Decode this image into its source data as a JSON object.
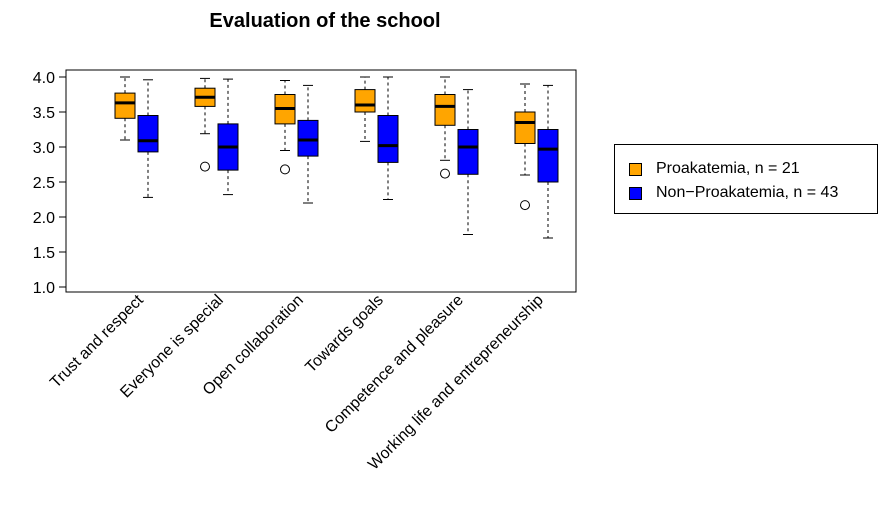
{
  "chart_data": {
    "type": "boxplot",
    "title": "Evaluation of the school",
    "xlabel": "",
    "ylabel": "",
    "ylim": [
      1.0,
      4.0
    ],
    "yticks": [
      "1.0",
      "1.5",
      "2.0",
      "2.5",
      "3.0",
      "3.5",
      "4.0"
    ],
    "categories": [
      "Trust and respect",
      "Everyone is special",
      "Open collaboration",
      "Towards goals",
      "Competence and pleasure",
      "Working life and entrepreneurship"
    ],
    "legend_position": "right",
    "series": [
      {
        "name": "Proakatemia, n = 21",
        "color": "#FFA500",
        "boxes": [
          {
            "min": 3.1,
            "q1": 3.41,
            "median": 3.63,
            "q3": 3.77,
            "max": 4.0,
            "outliers": []
          },
          {
            "min": 3.19,
            "q1": 3.58,
            "median": 3.71,
            "q3": 3.84,
            "max": 3.98,
            "outliers": [
              2.72
            ]
          },
          {
            "min": 2.95,
            "q1": 3.33,
            "median": 3.55,
            "q3": 3.75,
            "max": 3.95,
            "outliers": [
              2.68
            ]
          },
          {
            "min": 3.08,
            "q1": 3.5,
            "median": 3.6,
            "q3": 3.82,
            "max": 4.0,
            "outliers": []
          },
          {
            "min": 2.81,
            "q1": 3.31,
            "median": 3.58,
            "q3": 3.75,
            "max": 4.0,
            "outliers": [
              2.62
            ]
          },
          {
            "min": 2.6,
            "q1": 3.05,
            "median": 3.35,
            "q3": 3.5,
            "max": 3.9,
            "outliers": [
              2.17
            ]
          }
        ]
      },
      {
        "name": "Non−Proakatemia, n = 43",
        "color": "#0000FF",
        "boxes": [
          {
            "min": 2.28,
            "q1": 2.93,
            "median": 3.09,
            "q3": 3.45,
            "max": 3.96,
            "outliers": []
          },
          {
            "min": 2.32,
            "q1": 2.67,
            "median": 3.0,
            "q3": 3.33,
            "max": 3.97,
            "outliers": []
          },
          {
            "min": 2.2,
            "q1": 2.87,
            "median": 3.1,
            "q3": 3.38,
            "max": 3.88,
            "outliers": []
          },
          {
            "min": 2.25,
            "q1": 2.78,
            "median": 3.02,
            "q3": 3.45,
            "max": 4.0,
            "outliers": []
          },
          {
            "min": 1.75,
            "q1": 2.61,
            "median": 3.0,
            "q3": 3.25,
            "max": 3.82,
            "outliers": []
          },
          {
            "min": 1.7,
            "q1": 2.5,
            "median": 2.97,
            "q3": 3.25,
            "max": 3.88,
            "outliers": []
          }
        ]
      }
    ]
  }
}
